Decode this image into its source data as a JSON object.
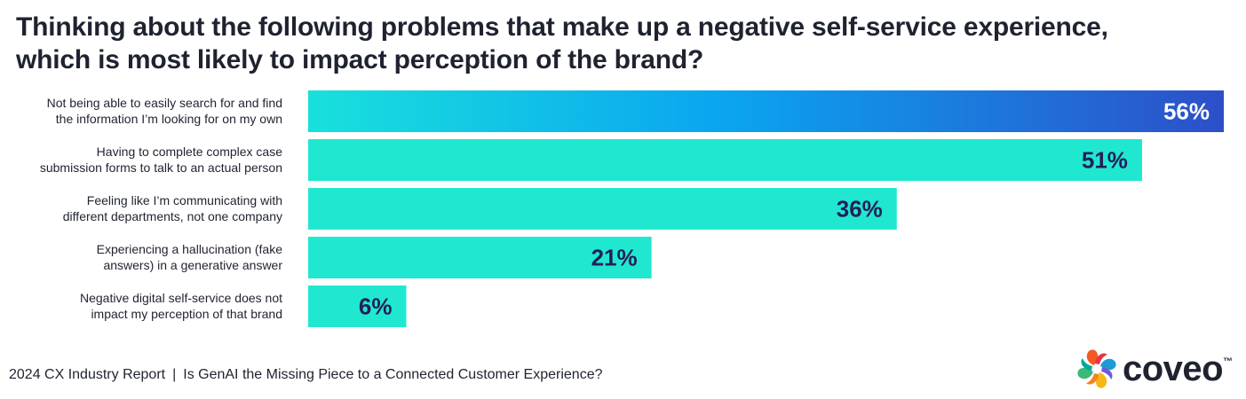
{
  "chart_data": {
    "type": "bar",
    "orientation": "horizontal",
    "title_lines": [
      "Thinking about the following problems that make up a negative self-service experience,",
      "which is most likely to impact perception of the brand?"
    ],
    "categories": [
      [
        "Not being able to easily search for and find",
        "the information I’m looking for on my own"
      ],
      [
        "Having to complete complex case",
        "submission forms to talk to an actual person"
      ],
      [
        "Feeling like I’m communicating with",
        "different departments, not one company"
      ],
      [
        "Experiencing a hallucination (fake",
        "answers) in a generative answer"
      ],
      [
        "Negative digital self-service does not",
        "impact my perception of that brand"
      ]
    ],
    "values": [
      56,
      51,
      36,
      21,
      6
    ],
    "value_labels": [
      "56%",
      "51%",
      "36%",
      "21%",
      "6%"
    ],
    "unit": "%",
    "xlim": [
      0,
      56
    ],
    "grid": false,
    "legend": "none",
    "highlight_index": 0
  },
  "colors": {
    "bar": "#20e8d0",
    "highlight_start": "#19e0dc",
    "highlight_mid": "#0aa5f0",
    "highlight_end": "#2d4fc9",
    "label_dark": "#23205a",
    "label_light": "#ffffff",
    "text": "#1f2330"
  },
  "footer": {
    "report": "2024 CX Industry Report",
    "separator": "|",
    "subtitle": "Is GenAI the Missing Piece to a Connected Customer Experience?"
  },
  "logo": {
    "name": "coveo",
    "trademark": "™",
    "icon": "coveo-logo-icon"
  }
}
